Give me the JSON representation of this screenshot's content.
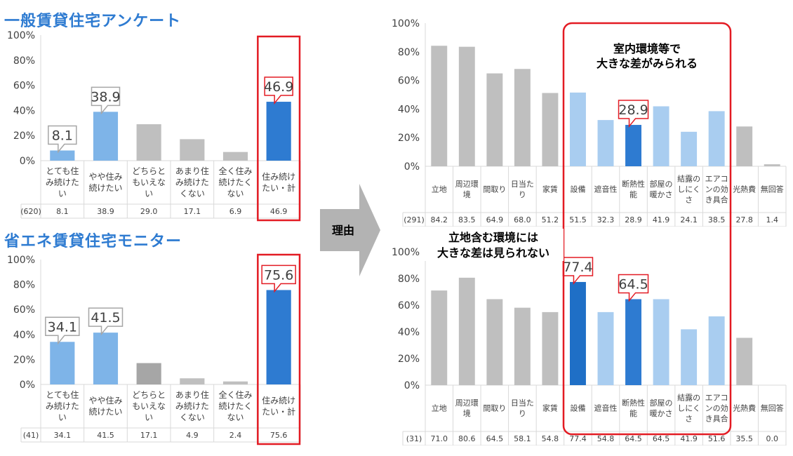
{
  "titles": {
    "general": "一般賃貸住宅アンケート",
    "monitor": "省エネ賃貸住宅モニター"
  },
  "arrow_label": "理由",
  "annotations": {
    "top_note_line1": "室内環境等で",
    "top_note_line2": "大きな差がみられる",
    "bottom_note_line1": "立地含む環境には",
    "bottom_note_line2": "大きな差は見られない"
  },
  "colors": {
    "gray": "#bfbfbf",
    "dark_gray": "#a6a6a6",
    "light_blue": "#7eb4e8",
    "pale_blue": "#a9cdf0",
    "blue": "#2e7bd1",
    "dark_blue": "#1f6fc6",
    "red": "#e31b23"
  },
  "chart_data": [
    {
      "id": "general_intention",
      "type": "bar",
      "ylim": [
        0,
        100
      ],
      "ytick_labels": [
        "0%",
        "20%",
        "40%",
        "60%",
        "80%",
        "100%"
      ],
      "n_label": "(620)",
      "categories": [
        [
          "とても住",
          "み続けた",
          "い"
        ],
        [
          "やや住み",
          "続けたい"
        ],
        [
          "どちらと",
          "もいえな",
          "い"
        ],
        [
          "あまり住",
          "み続けた",
          "くない"
        ],
        [
          "全く住み",
          "続けたく",
          "ない"
        ],
        [
          "住み続け",
          "たい・計"
        ]
      ],
      "values": [
        8.1,
        38.9,
        29.0,
        17.1,
        6.9,
        46.9
      ],
      "value_labels": [
        "8.1",
        "38.9",
        "29.0",
        "17.1",
        "6.9",
        "46.9"
      ],
      "callouts": [
        "8.1",
        "38.9",
        "",
        "",
        "",
        "46.9"
      ],
      "bar_colors": [
        "light_blue",
        "light_blue",
        "gray",
        "gray",
        "gray",
        "blue"
      ]
    },
    {
      "id": "monitor_intention",
      "type": "bar",
      "ylim": [
        0,
        100
      ],
      "ytick_labels": [
        "0%",
        "20%",
        "40%",
        "60%",
        "80%",
        "100%"
      ],
      "n_label": "(41)",
      "categories": [
        [
          "とても住",
          "み続けた",
          "い"
        ],
        [
          "やや住み",
          "続けたい"
        ],
        [
          "どちらと",
          "もいえな",
          "い"
        ],
        [
          "あまり住",
          "み続けた",
          "くない"
        ],
        [
          "全く住み",
          "続けたく",
          "ない"
        ],
        [
          "住み続け",
          "たい・計"
        ]
      ],
      "values": [
        34.1,
        41.5,
        17.1,
        4.9,
        2.4,
        75.6
      ],
      "value_labels": [
        "34.1",
        "41.5",
        "17.1",
        "4.9",
        "2.4",
        "75.6"
      ],
      "callouts": [
        "34.1",
        "41.5",
        "",
        "",
        "",
        "75.6"
      ],
      "bar_colors": [
        "light_blue",
        "light_blue",
        "dark_gray",
        "gray",
        "gray",
        "blue"
      ]
    },
    {
      "id": "general_reasons",
      "type": "bar",
      "ylim": [
        0,
        100
      ],
      "ytick_labels": [
        "0%",
        "20%",
        "40%",
        "60%",
        "80%",
        "100%"
      ],
      "n_label": "(291)",
      "categories": [
        [
          "立地"
        ],
        [
          "周辺環",
          "境"
        ],
        [
          "間取り"
        ],
        [
          "日当た",
          "り"
        ],
        [
          "家賃"
        ],
        [
          "設備"
        ],
        [
          "遮音性"
        ],
        [
          "断熱性",
          "能"
        ],
        [
          "部屋の",
          "暖かさ"
        ],
        [
          "結露の",
          "しにく",
          "さ"
        ],
        [
          "エアコ",
          "ンの効",
          "き具合"
        ],
        [
          "光熱費"
        ],
        [
          "無回答"
        ]
      ],
      "values": [
        84.2,
        83.5,
        64.9,
        68.0,
        51.2,
        51.5,
        32.3,
        28.9,
        41.9,
        24.1,
        38.5,
        27.8,
        1.4
      ],
      "value_labels": [
        "84.2",
        "83.5",
        "64.9",
        "68.0",
        "51.2",
        "51.5",
        "32.3",
        "28.9",
        "41.9",
        "24.1",
        "38.5",
        "27.8",
        "1.4"
      ],
      "callouts": [
        "",
        "",
        "",
        "",
        "",
        "",
        "",
        "28.9",
        "",
        "",
        "",
        "",
        ""
      ],
      "bar_colors": [
        "gray",
        "gray",
        "gray",
        "gray",
        "gray",
        "pale_blue",
        "pale_blue",
        "blue",
        "pale_blue",
        "pale_blue",
        "pale_blue",
        "gray",
        "gray"
      ]
    },
    {
      "id": "monitor_reasons",
      "type": "bar",
      "ylim": [
        0,
        100
      ],
      "ytick_labels": [
        "0%",
        "20%",
        "40%",
        "60%",
        "80%",
        "100%"
      ],
      "n_label": "(31)",
      "categories": [
        [
          "立地"
        ],
        [
          "周辺環",
          "境"
        ],
        [
          "間取り"
        ],
        [
          "日当た",
          "り"
        ],
        [
          "家賃"
        ],
        [
          "設備"
        ],
        [
          "遮音性"
        ],
        [
          "断熱性",
          "能"
        ],
        [
          "部屋の",
          "暖かさ"
        ],
        [
          "結露の",
          "しにく",
          "さ"
        ],
        [
          "エアコ",
          "ンの効",
          "き具合"
        ],
        [
          "光熱費"
        ],
        [
          "無回答"
        ]
      ],
      "values": [
        71.0,
        80.6,
        64.5,
        58.1,
        54.8,
        77.4,
        54.8,
        64.5,
        64.5,
        41.9,
        51.6,
        35.5,
        0.0
      ],
      "value_labels": [
        "71.0",
        "80.6",
        "64.5",
        "58.1",
        "54.8",
        "77.4",
        "54.8",
        "64.5",
        "64.5",
        "41.9",
        "51.6",
        "35.5",
        "0.0"
      ],
      "callouts": [
        "",
        "",
        "",
        "",
        "",
        "77.4",
        "",
        "64.5",
        "",
        "",
        "",
        "",
        ""
      ],
      "bar_colors": [
        "gray",
        "gray",
        "gray",
        "gray",
        "gray",
        "dark_blue",
        "pale_blue",
        "blue",
        "pale_blue",
        "pale_blue",
        "pale_blue",
        "gray",
        "gray"
      ]
    }
  ]
}
